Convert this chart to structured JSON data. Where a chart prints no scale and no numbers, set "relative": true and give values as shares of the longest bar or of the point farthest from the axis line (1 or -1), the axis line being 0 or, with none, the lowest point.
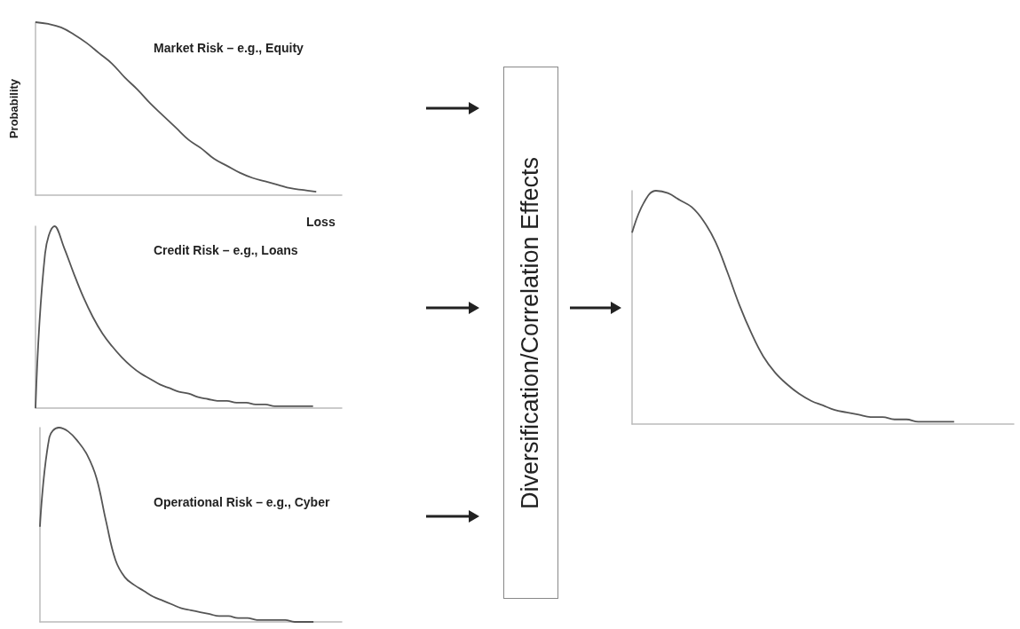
{
  "chart_data": [
    {
      "type": "line",
      "title": "Market Risk – e.g., Equity",
      "xlabel": "Loss",
      "ylabel": "Probability",
      "relative": true,
      "color": "#555555",
      "marker": "none",
      "categories": [
        null,
        null,
        null,
        null,
        null,
        null,
        null,
        null,
        null,
        null,
        null,
        null,
        null,
        null,
        null,
        null,
        null,
        null,
        null,
        null,
        null,
        null,
        null,
        null,
        null
      ],
      "values": [
        1,
        0.99,
        0.97,
        0.93,
        0.88,
        0.82,
        0.76,
        0.68,
        0.61,
        0.53,
        0.46,
        0.39,
        0.32,
        0.27,
        0.21,
        0.17,
        0.13,
        0.1,
        0.08,
        0.06,
        0.04,
        0.03,
        0.02,
        null,
        null
      ]
    },
    {
      "type": "line",
      "title": "Credit Risk – e.g., Loans",
      "relative": true,
      "color": "#555555",
      "marker": "none",
      "categories": [
        null,
        null,
        null,
        null,
        null,
        null,
        null,
        null,
        null,
        null,
        null,
        null,
        null,
        null,
        null,
        null,
        null,
        null,
        null,
        null,
        null,
        null,
        null,
        null,
        null,
        null,
        null,
        null,
        null,
        null,
        null,
        null,
        null
      ],
      "values": [
        0,
        0.85,
        1,
        0.88,
        0.74,
        0.61,
        0.5,
        0.41,
        0.34,
        0.28,
        0.23,
        0.19,
        0.16,
        0.13,
        0.11,
        0.09,
        0.08,
        0.06,
        0.05,
        0.04,
        0.04,
        0.03,
        0.03,
        0.02,
        0.02,
        0.01,
        0.01,
        0.01,
        0.01,
        0.01,
        null,
        null,
        null
      ]
    },
    {
      "type": "line",
      "title": "Operational Risk – e.g., Cyber",
      "relative": true,
      "color": "#555555",
      "marker": "none",
      "categories": [
        null,
        null,
        null,
        null,
        null,
        null,
        null,
        null,
        null,
        null,
        null,
        null,
        null,
        null,
        null,
        null,
        null,
        null,
        null,
        null,
        null,
        null,
        null,
        null,
        null,
        null,
        null,
        null,
        null,
        null,
        null,
        null,
        null
      ],
      "values": [
        0.49,
        0.95,
        1,
        0.98,
        0.93,
        0.86,
        0.74,
        0.52,
        0.32,
        0.23,
        0.19,
        0.16,
        0.13,
        0.11,
        0.09,
        0.07,
        0.06,
        0.05,
        0.04,
        0.03,
        0.03,
        0.02,
        0.02,
        0.01,
        0.01,
        0.01,
        0.01,
        0,
        0,
        0,
        null,
        null,
        null
      ]
    },
    {
      "type": "line",
      "relative": true,
      "color": "#555555",
      "marker": "none",
      "categories": [
        null,
        null,
        null,
        null,
        null,
        null,
        null,
        null,
        null,
        null,
        null,
        null,
        null,
        null,
        null,
        null,
        null,
        null,
        null,
        null,
        null,
        null,
        null,
        null,
        null,
        null,
        null,
        null,
        null,
        null,
        null,
        null,
        null
      ],
      "values": [
        0.82,
        0.95,
        1,
        0.99,
        0.96,
        0.93,
        0.87,
        0.78,
        0.65,
        0.51,
        0.39,
        0.29,
        0.22,
        0.17,
        0.13,
        0.1,
        0.08,
        0.06,
        0.05,
        0.04,
        0.03,
        0.03,
        0.02,
        0.02,
        0.01,
        0.01,
        0.01,
        0.01,
        null,
        null,
        null,
        null,
        null
      ]
    },
    {
      "type": "other",
      "title": "Diversification/Correlation Effects"
    }
  ]
}
